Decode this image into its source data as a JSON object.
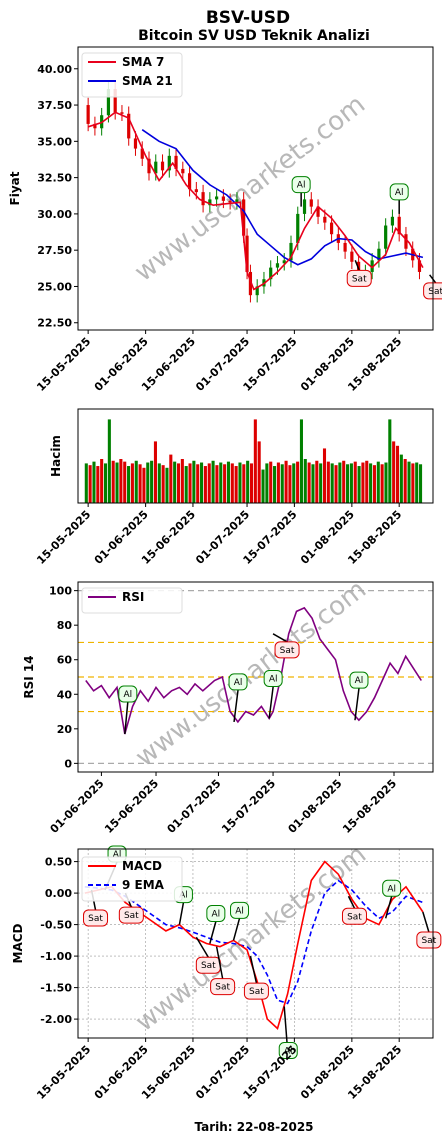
{
  "title": "BSV-USD",
  "subtitle": "Bitcoin SV USD Teknik Analizi",
  "watermark": "www.uscmarkets.com",
  "footer": "Tarih: 22-08-2025",
  "colors": {
    "sma7": "#e8001c",
    "sma21": "#0000dd",
    "up": "#008000",
    "down": "#dd0000",
    "rsi": "#800080",
    "macd": "#ff0000",
    "ema9": "#0000ff"
  },
  "chart_data": [
    {
      "type": "line",
      "name": "price",
      "ylabel": "Fiyat",
      "ylim": [
        22,
        41.5
      ],
      "yticks": [
        "22.50",
        "25.00",
        "27.50",
        "30.00",
        "32.50",
        "35.00",
        "37.50",
        "40.00"
      ],
      "xticks": [
        "15-05-2025",
        "01-06-2025",
        "15-06-2025",
        "01-07-2025",
        "15-07-2025",
        "01-08-2025",
        "15-08-2025"
      ],
      "xrange": [
        "2025-05-12",
        "2025-08-25"
      ],
      "legend_placement": "top-left",
      "series": [
        {
          "name": "SMA 7",
          "dates": [
            "2025-05-15",
            "2025-05-19",
            "2025-05-23",
            "2025-05-27",
            "2025-06-01",
            "2025-06-05",
            "2025-06-09",
            "2025-06-13",
            "2025-06-17",
            "2025-06-21",
            "2025-06-25",
            "2025-06-29",
            "2025-07-01",
            "2025-07-03",
            "2025-07-06",
            "2025-07-10",
            "2025-07-14",
            "2025-07-18",
            "2025-07-22",
            "2025-07-26",
            "2025-07-30",
            "2025-08-03",
            "2025-08-07",
            "2025-08-11",
            "2025-08-14",
            "2025-08-18",
            "2025-08-22"
          ],
          "values": [
            36.0,
            36.3,
            37.0,
            36.6,
            34.0,
            32.3,
            33.5,
            32.0,
            31.0,
            30.6,
            30.7,
            30.8,
            26.0,
            24.8,
            25.2,
            26.0,
            27.0,
            29.0,
            30.5,
            29.7,
            28.5,
            27.1,
            26.3,
            27.2,
            29.0,
            28.0,
            26.3
          ]
        },
        {
          "name": "SMA 21",
          "dates": [
            "2025-05-31",
            "2025-06-05",
            "2025-06-10",
            "2025-06-15",
            "2025-06-20",
            "2025-06-25",
            "2025-06-30",
            "2025-07-04",
            "2025-07-08",
            "2025-07-12",
            "2025-07-16",
            "2025-07-20",
            "2025-07-24",
            "2025-07-28",
            "2025-08-01",
            "2025-08-05",
            "2025-08-09",
            "2025-08-13",
            "2025-08-17",
            "2025-08-22"
          ],
          "values": [
            35.8,
            35.0,
            34.5,
            33.0,
            32.0,
            31.3,
            30.2,
            28.6,
            27.8,
            27.0,
            26.5,
            26.9,
            27.8,
            28.3,
            28.2,
            27.4,
            26.9,
            27.1,
            27.3,
            27.0
          ]
        }
      ],
      "ohlc": {
        "dates": [
          "2025-05-15",
          "2025-05-17",
          "2025-05-19",
          "2025-05-21",
          "2025-05-23",
          "2025-05-25",
          "2025-05-27",
          "2025-05-29",
          "2025-05-31",
          "2025-06-02",
          "2025-06-04",
          "2025-06-06",
          "2025-06-08",
          "2025-06-10",
          "2025-06-12",
          "2025-06-14",
          "2025-06-16",
          "2025-06-18",
          "2025-06-20",
          "2025-06-22",
          "2025-06-24",
          "2025-06-26",
          "2025-06-28",
          "2025-06-30",
          "2025-07-01",
          "2025-07-02",
          "2025-07-04",
          "2025-07-06",
          "2025-07-08",
          "2025-07-10",
          "2025-07-12",
          "2025-07-14",
          "2025-07-16",
          "2025-07-18",
          "2025-07-20",
          "2025-07-22",
          "2025-07-24",
          "2025-07-26",
          "2025-07-28",
          "2025-07-30",
          "2025-08-01",
          "2025-08-03",
          "2025-08-05",
          "2025-08-07",
          "2025-08-09",
          "2025-08-11",
          "2025-08-13",
          "2025-08-15",
          "2025-08-17",
          "2025-08-19",
          "2025-08-21"
        ],
        "open": [
          37.5,
          36.2,
          35.9,
          36.8,
          38.6,
          37.0,
          36.9,
          35.2,
          34.5,
          33.8,
          32.8,
          33.6,
          33.0,
          34.0,
          33.1,
          32.8,
          31.7,
          31.5,
          30.6,
          31.0,
          31.2,
          30.9,
          30.8,
          31.0,
          28.5,
          26.0,
          24.4,
          25.0,
          25.5,
          26.3,
          26.6,
          26.8,
          28.0,
          30.0,
          31.0,
          30.5,
          29.8,
          29.4,
          28.6,
          28.0,
          27.4,
          26.7,
          25.8,
          26.0,
          26.8,
          27.6,
          29.2,
          29.8,
          28.6,
          27.6,
          26.8
        ],
        "close": [
          36.2,
          35.9,
          36.8,
          38.6,
          37.0,
          36.9,
          35.2,
          34.5,
          33.8,
          32.8,
          33.6,
          33.0,
          34.0,
          33.1,
          32.8,
          31.7,
          31.5,
          30.6,
          31.0,
          31.2,
          30.9,
          30.8,
          31.0,
          28.5,
          26.0,
          24.4,
          25.0,
          25.5,
          26.3,
          26.6,
          26.8,
          28.0,
          30.0,
          31.0,
          30.5,
          29.8,
          29.4,
          28.6,
          28.0,
          27.4,
          26.7,
          25.8,
          26.0,
          26.8,
          27.6,
          29.2,
          29.8,
          28.6,
          27.6,
          26.8,
          26.0
        ]
      },
      "annotations": [
        {
          "label": "Al",
          "date": "2025-07-17",
          "value": 30.5,
          "kind": "buy"
        },
        {
          "label": "Sat",
          "date": "2025-08-02",
          "value": 26.8,
          "kind": "sell"
        },
        {
          "label": "Al",
          "date": "2025-08-15",
          "value": 30.0,
          "kind": "buy"
        },
        {
          "label": "Sat",
          "date": "2025-08-24",
          "value": 25.8,
          "kind": "sell"
        }
      ]
    },
    {
      "type": "bar",
      "name": "volume",
      "ylabel": "Hacim",
      "xticks": [
        "15-05-2025",
        "01-06-2025",
        "15-06-2025",
        "01-07-2025",
        "15-07-2025",
        "01-08-2025",
        "15-08-2025"
      ],
      "values": [
        0.45,
        0.43,
        0.47,
        0.42,
        0.5,
        0.45,
        0.95,
        0.48,
        0.46,
        0.5,
        0.47,
        0.42,
        0.45,
        0.48,
        0.44,
        0.4,
        0.46,
        0.48,
        0.7,
        0.45,
        0.43,
        0.4,
        0.55,
        0.47,
        0.45,
        0.5,
        0.42,
        0.45,
        0.48,
        0.44,
        0.46,
        0.42,
        0.45,
        0.48,
        0.43,
        0.46,
        0.44,
        0.47,
        0.45,
        0.42,
        0.46,
        0.44,
        0.48,
        0.45,
        0.95,
        0.7,
        0.38,
        0.45,
        0.47,
        0.42,
        0.46,
        0.44,
        0.48,
        0.43,
        0.45,
        0.47,
        0.95,
        0.5,
        0.46,
        0.44,
        0.48,
        0.45,
        0.62,
        0.47,
        0.45,
        0.43,
        0.46,
        0.48,
        0.44,
        0.45,
        0.47,
        0.42,
        0.46,
        0.48,
        0.45,
        0.43,
        0.47,
        0.44,
        0.46,
        0.95,
        0.7,
        0.65,
        0.55,
        0.5,
        0.47,
        0.45,
        0.46,
        0.44
      ],
      "up": [
        1,
        0,
        1,
        0,
        0,
        1,
        1,
        0,
        1,
        0,
        0,
        1,
        0,
        1,
        0,
        0,
        1,
        1,
        0,
        1,
        0,
        1,
        0,
        1,
        0,
        0,
        1,
        0,
        1,
        0,
        1,
        0,
        0,
        1,
        0,
        1,
        0,
        1,
        0,
        0,
        1,
        0,
        1,
        0,
        0,
        0,
        1,
        1,
        0,
        1,
        0,
        1,
        0,
        0,
        1,
        0,
        1,
        1,
        0,
        1,
        0,
        1,
        0,
        0,
        1,
        0,
        1,
        0,
        1,
        1,
        0,
        1,
        0,
        0,
        1,
        0,
        1,
        0,
        1,
        1,
        0,
        0,
        1,
        0,
        1,
        0,
        1,
        1
      ]
    },
    {
      "type": "line",
      "name": "rsi",
      "ylabel": "RSI 14",
      "ylim": [
        -5,
        105
      ],
      "yticks": [
        "0",
        "20",
        "40",
        "60",
        "80",
        "100"
      ],
      "xticks": [
        "01-06-2025",
        "15-06-2025",
        "01-07-2025",
        "15-07-2025",
        "01-08-2025",
        "15-08-2025"
      ],
      "xrange": [
        "2025-05-26",
        "2025-08-25"
      ],
      "hlines": [
        0,
        30,
        50,
        70,
        100
      ],
      "legend_placement": "top-left",
      "series": [
        {
          "name": "RSI",
          "dates": [
            "2025-05-28",
            "2025-05-30",
            "2025-06-01",
            "2025-06-03",
            "2025-06-05",
            "2025-06-07",
            "2025-06-09",
            "2025-06-11",
            "2025-06-13",
            "2025-06-15",
            "2025-06-17",
            "2025-06-19",
            "2025-06-21",
            "2025-06-23",
            "2025-06-25",
            "2025-06-27",
            "2025-06-30",
            "2025-07-02",
            "2025-07-04",
            "2025-07-06",
            "2025-07-08",
            "2025-07-10",
            "2025-07-12",
            "2025-07-14",
            "2025-07-15",
            "2025-07-17",
            "2025-07-19",
            "2025-07-21",
            "2025-07-23",
            "2025-07-25",
            "2025-07-27",
            "2025-07-29",
            "2025-07-31",
            "2025-08-02",
            "2025-08-04",
            "2025-08-06",
            "2025-08-08",
            "2025-08-10",
            "2025-08-12",
            "2025-08-14",
            "2025-08-16",
            "2025-08-18",
            "2025-08-20",
            "2025-08-22"
          ],
          "values": [
            48,
            42,
            45,
            38,
            44,
            17,
            33,
            42,
            36,
            44,
            38,
            42,
            44,
            40,
            46,
            42,
            48,
            50,
            30,
            24,
            30,
            28,
            33,
            26,
            30,
            50,
            75,
            88,
            90,
            84,
            72,
            66,
            60,
            42,
            30,
            25,
            30,
            38,
            48,
            58,
            52,
            62,
            55,
            48
          ]
        }
      ],
      "annotations": [
        {
          "label": "Al",
          "date": "2025-06-07",
          "value": 17,
          "kind": "buy"
        },
        {
          "label": "Al",
          "date": "2025-07-05",
          "value": 24,
          "kind": "buy"
        },
        {
          "label": "Al",
          "date": "2025-07-14",
          "value": 26,
          "kind": "buy"
        },
        {
          "label": "Sat",
          "date": "2025-07-15",
          "value": 75,
          "kind": "sell"
        },
        {
          "label": "Al",
          "date": "2025-08-05",
          "value": 25,
          "kind": "buy"
        }
      ]
    },
    {
      "type": "line",
      "name": "macd",
      "ylabel": "MACD",
      "xlabel": "Tarih: 22-08-2025",
      "ylim": [
        -2.3,
        0.7
      ],
      "yticks": [
        "-2.00",
        "-1.50",
        "-1.00",
        "-0.50",
        "0.00",
        "0.50"
      ],
      "xticks": [
        "15-05-2025",
        "01-06-2025",
        "15-06-2025",
        "01-07-2025",
        "15-07-2025",
        "01-08-2025",
        "15-08-2025"
      ],
      "xrange": [
        "2025-05-12",
        "2025-08-25"
      ],
      "legend_placement": "top-left",
      "series": [
        {
          "name": "MACD",
          "dates": [
            "2025-05-14",
            "2025-05-18",
            "2025-05-22",
            "2025-05-26",
            "2025-05-30",
            "2025-06-03",
            "2025-06-07",
            "2025-06-11",
            "2025-06-15",
            "2025-06-19",
            "2025-06-23",
            "2025-06-27",
            "2025-07-01",
            "2025-07-04",
            "2025-07-07",
            "2025-07-10",
            "2025-07-13",
            "2025-07-16",
            "2025-07-20",
            "2025-07-24",
            "2025-07-28",
            "2025-08-01",
            "2025-08-05",
            "2025-08-09",
            "2025-08-13",
            "2025-08-17",
            "2025-08-22"
          ],
          "values": [
            0.0,
            0.05,
            0.1,
            -0.15,
            -0.3,
            -0.45,
            -0.6,
            -0.5,
            -0.7,
            -0.8,
            -0.85,
            -0.75,
            -0.9,
            -1.4,
            -2.0,
            -2.15,
            -1.6,
            -0.8,
            0.2,
            0.5,
            0.3,
            -0.1,
            -0.4,
            -0.5,
            -0.1,
            0.1,
            -0.3
          ]
        },
        {
          "name": "9 EMA",
          "dates": [
            "2025-05-14",
            "2025-05-18",
            "2025-05-22",
            "2025-05-26",
            "2025-05-30",
            "2025-06-03",
            "2025-06-07",
            "2025-06-11",
            "2025-06-15",
            "2025-06-19",
            "2025-06-23",
            "2025-06-27",
            "2025-07-01",
            "2025-07-04",
            "2025-07-07",
            "2025-07-10",
            "2025-07-13",
            "2025-07-16",
            "2025-07-20",
            "2025-07-24",
            "2025-07-28",
            "2025-08-01",
            "2025-08-05",
            "2025-08-09",
            "2025-08-13",
            "2025-08-17",
            "2025-08-22"
          ],
          "values": [
            0.1,
            0.08,
            0.05,
            -0.05,
            -0.2,
            -0.35,
            -0.5,
            -0.55,
            -0.62,
            -0.7,
            -0.78,
            -0.8,
            -0.85,
            -1.0,
            -1.3,
            -1.7,
            -1.75,
            -1.4,
            -0.6,
            0.0,
            0.2,
            0.05,
            -0.2,
            -0.4,
            -0.3,
            -0.05,
            -0.15
          ]
        }
      ],
      "annotations": [
        {
          "label": "Al",
          "date": "2025-05-20",
          "value": 0.05,
          "kind": "buy"
        },
        {
          "label": "Sat",
          "date": "2025-05-16",
          "value": 0.05,
          "kind": "sell"
        },
        {
          "label": "Sat",
          "date": "2025-05-26",
          "value": 0.0,
          "kind": "sell"
        },
        {
          "label": "Al",
          "date": "2025-06-11",
          "value": -0.5,
          "kind": "buy"
        },
        {
          "label": "Sat",
          "date": "2025-06-16",
          "value": -0.7,
          "kind": "sell"
        },
        {
          "label": "Al",
          "date": "2025-06-20",
          "value": -0.8,
          "kind": "buy"
        },
        {
          "label": "Sat",
          "date": "2025-06-22",
          "value": -0.85,
          "kind": "sell"
        },
        {
          "label": "Al",
          "date": "2025-06-27",
          "value": -0.75,
          "kind": "buy"
        },
        {
          "label": "Sat",
          "date": "2025-07-02",
          "value": -1.0,
          "kind": "sell"
        },
        {
          "label": "Al",
          "date": "2025-07-12",
          "value": -1.8,
          "kind": "buy"
        },
        {
          "label": "Sat",
          "date": "2025-07-31",
          "value": -0.05,
          "kind": "sell"
        },
        {
          "label": "Al",
          "date": "2025-08-11",
          "value": -0.4,
          "kind": "buy"
        },
        {
          "label": "Sat",
          "date": "2025-08-22",
          "value": -0.3,
          "kind": "sell"
        }
      ]
    }
  ]
}
